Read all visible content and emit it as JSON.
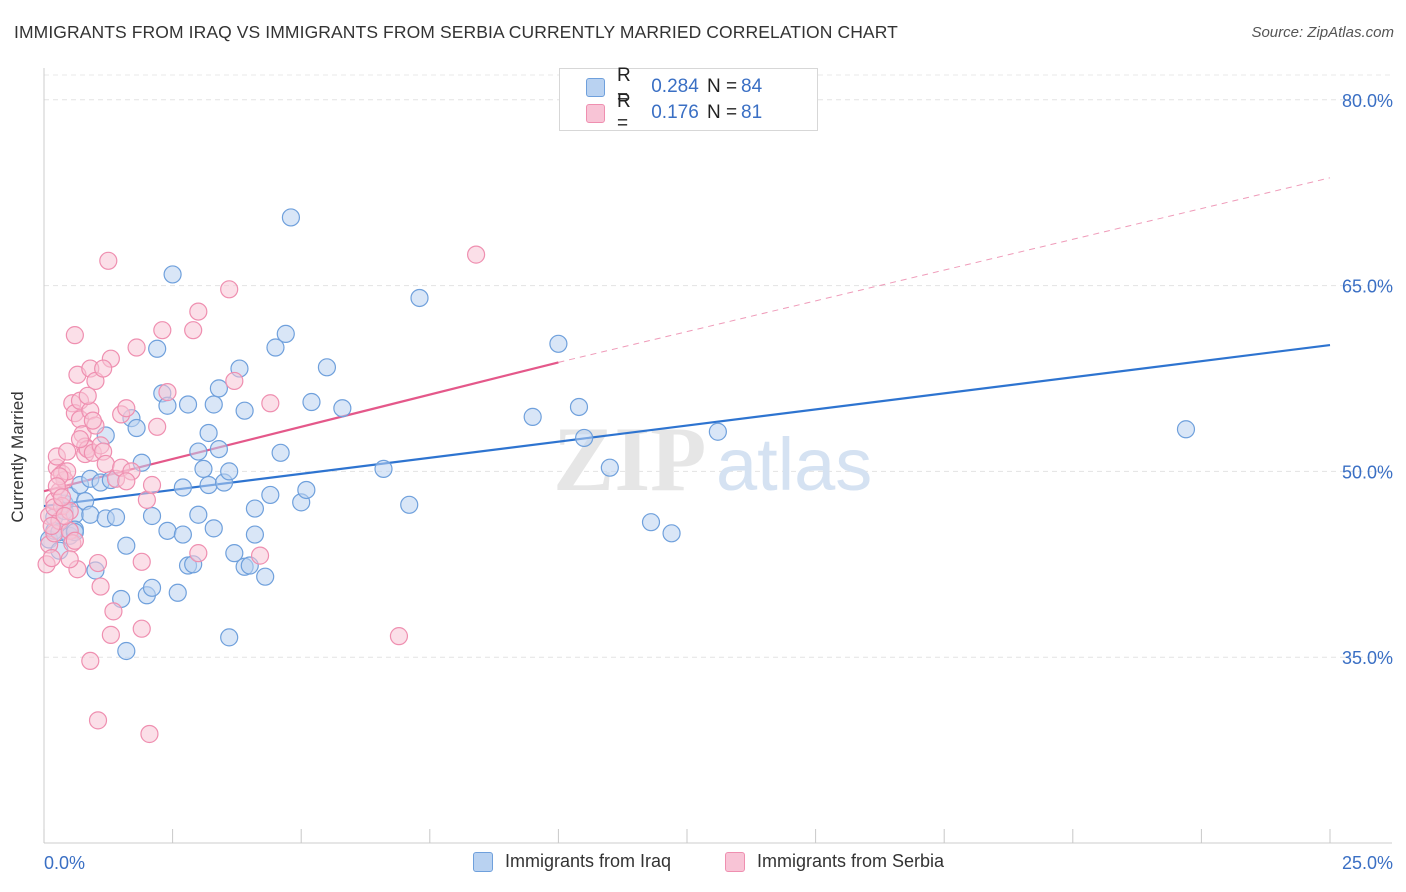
{
  "chart_data": {
    "type": "scatter",
    "title": "IMMIGRANTS FROM IRAQ VS IMMIGRANTS FROM SERBIA CURRENTLY MARRIED CORRELATION CHART",
    "source": "Source: ZipAtlas.com",
    "ylabel": "Currently Married",
    "xlabel": "",
    "xlim": [
      0,
      25
    ],
    "ylim": [
      20,
      82
    ],
    "x_tick_labels": [
      "0.0%",
      "25.0%"
    ],
    "y_ticks": [
      80,
      65,
      50,
      35
    ],
    "y_tick_labels": [
      "80.0%",
      "65.0%",
      "50.0%",
      "35.0%"
    ],
    "grid": true,
    "watermark": "ZIPatlas",
    "legend": {
      "placement": "top-center",
      "entries": [
        {
          "r_label": "R =",
          "r_value": "0.284",
          "n_label": "N =",
          "n_value": "84"
        },
        {
          "r_label": "R =",
          "r_value": "0.176",
          "n_label": "N =",
          "n_value": "81"
        }
      ]
    },
    "series": [
      {
        "name": "Immigrants from Iraq",
        "color": "#6fa0dc",
        "fill": "#b9d2f1",
        "line_color": "#2e74d0",
        "trend": {
          "x0": 0,
          "y0": 47.2,
          "x1": 25,
          "y1": 60.2
        },
        "points": [
          [
            0.1,
            44.5
          ],
          [
            0.2,
            45.2
          ],
          [
            0.2,
            46.3
          ],
          [
            0.3,
            43.6
          ],
          [
            0.3,
            45.1
          ],
          [
            0.4,
            47.4
          ],
          [
            0.4,
            46.8
          ],
          [
            0.5,
            44.8
          ],
          [
            0.5,
            48.0
          ],
          [
            0.6,
            46.5
          ],
          [
            0.6,
            45.3
          ],
          [
            0.7,
            48.9
          ],
          [
            0.8,
            47.6
          ],
          [
            0.9,
            49.4
          ],
          [
            0.9,
            46.5
          ],
          [
            1.0,
            42.0
          ],
          [
            1.1,
            49.1
          ],
          [
            1.2,
            52.9
          ],
          [
            1.2,
            46.2
          ],
          [
            1.3,
            49.3
          ],
          [
            1.4,
            46.3
          ],
          [
            1.5,
            39.7
          ],
          [
            1.6,
            44.0
          ],
          [
            1.6,
            35.5
          ],
          [
            1.7,
            54.3
          ],
          [
            1.8,
            53.5
          ],
          [
            1.9,
            50.7
          ],
          [
            2.0,
            40.0
          ],
          [
            2.1,
            46.4
          ],
          [
            2.1,
            40.6
          ],
          [
            2.2,
            59.9
          ],
          [
            2.3,
            56.3
          ],
          [
            2.4,
            55.3
          ],
          [
            2.4,
            45.2
          ],
          [
            2.5,
            65.9
          ],
          [
            2.6,
            40.2
          ],
          [
            2.7,
            44.9
          ],
          [
            2.7,
            48.7
          ],
          [
            2.8,
            42.4
          ],
          [
            2.8,
            55.4
          ],
          [
            2.9,
            42.5
          ],
          [
            3.0,
            46.5
          ],
          [
            3.0,
            51.6
          ],
          [
            3.1,
            50.2
          ],
          [
            3.2,
            48.9
          ],
          [
            3.2,
            53.1
          ],
          [
            3.3,
            55.4
          ],
          [
            3.3,
            45.4
          ],
          [
            3.4,
            51.8
          ],
          [
            3.4,
            56.7
          ],
          [
            3.5,
            49.1
          ],
          [
            3.6,
            36.6
          ],
          [
            3.6,
            50.0
          ],
          [
            3.7,
            43.4
          ],
          [
            3.8,
            58.3
          ],
          [
            3.9,
            54.9
          ],
          [
            3.9,
            42.3
          ],
          [
            4.0,
            42.4
          ],
          [
            4.1,
            44.9
          ],
          [
            4.1,
            47.0
          ],
          [
            4.3,
            41.5
          ],
          [
            4.4,
            48.1
          ],
          [
            4.5,
            60.0
          ],
          [
            4.6,
            51.5
          ],
          [
            4.7,
            61.1
          ],
          [
            4.8,
            70.5
          ],
          [
            5.0,
            47.5
          ],
          [
            5.1,
            48.5
          ],
          [
            5.2,
            55.6
          ],
          [
            5.5,
            58.4
          ],
          [
            5.8,
            55.1
          ],
          [
            6.6,
            50.2
          ],
          [
            7.1,
            47.3
          ],
          [
            7.3,
            64.0
          ],
          [
            9.5,
            54.4
          ],
          [
            10.0,
            60.3
          ],
          [
            10.4,
            55.2
          ],
          [
            10.5,
            52.7
          ],
          [
            11.0,
            50.3
          ],
          [
            11.8,
            45.9
          ],
          [
            12.2,
            45.0
          ],
          [
            13.1,
            53.2
          ],
          [
            22.2,
            53.4
          ],
          [
            0.6,
            45.1
          ]
        ]
      },
      {
        "name": "Immigrants from Serbia",
        "color": "#ef8fb0",
        "fill": "#f8c4d6",
        "line_color": "#e4588a",
        "trend": {
          "x0": 0,
          "y0": 48.4,
          "x1": 10.0,
          "y1": 58.8
        },
        "trend_ext": {
          "x0": 10.0,
          "y0": 58.8,
          "x1": 25,
          "y1": 73.7
        },
        "points": [
          [
            0.05,
            42.5
          ],
          [
            0.1,
            44.1
          ],
          [
            0.1,
            46.4
          ],
          [
            0.15,
            43.0
          ],
          [
            0.2,
            47.6
          ],
          [
            0.2,
            45.0
          ],
          [
            0.25,
            50.3
          ],
          [
            0.25,
            51.2
          ],
          [
            0.3,
            48.4
          ],
          [
            0.3,
            46.0
          ],
          [
            0.35,
            49.8
          ],
          [
            0.35,
            47.2
          ],
          [
            0.4,
            49.3
          ],
          [
            0.45,
            50.0
          ],
          [
            0.5,
            46.8
          ],
          [
            0.5,
            45.2
          ],
          [
            0.55,
            44.2
          ],
          [
            0.55,
            55.5
          ],
          [
            0.6,
            61.0
          ],
          [
            0.6,
            54.7
          ],
          [
            0.65,
            42.1
          ],
          [
            0.65,
            57.8
          ],
          [
            0.7,
            55.7
          ],
          [
            0.7,
            54.2
          ],
          [
            0.75,
            53.0
          ],
          [
            0.8,
            52.0
          ],
          [
            0.8,
            51.4
          ],
          [
            0.85,
            51.8
          ],
          [
            0.9,
            58.3
          ],
          [
            0.9,
            54.9
          ],
          [
            0.95,
            51.5
          ],
          [
            1.0,
            57.3
          ],
          [
            1.0,
            53.7
          ],
          [
            1.05,
            42.6
          ],
          [
            1.1,
            40.7
          ],
          [
            1.1,
            52.1
          ],
          [
            1.15,
            51.6
          ],
          [
            1.2,
            50.6
          ],
          [
            1.25,
            67.0
          ],
          [
            1.3,
            59.1
          ],
          [
            1.3,
            36.8
          ],
          [
            1.35,
            38.7
          ],
          [
            1.4,
            49.4
          ],
          [
            1.5,
            54.6
          ],
          [
            1.5,
            50.3
          ],
          [
            1.6,
            55.1
          ],
          [
            1.7,
            50.0
          ],
          [
            1.8,
            60.0
          ],
          [
            1.9,
            37.3
          ],
          [
            1.9,
            42.7
          ],
          [
            2.0,
            47.7
          ],
          [
            2.1,
            48.9
          ],
          [
            2.2,
            53.6
          ],
          [
            2.3,
            61.4
          ],
          [
            2.4,
            56.4
          ],
          [
            2.9,
            61.4
          ],
          [
            3.0,
            62.9
          ],
          [
            3.0,
            43.4
          ],
          [
            3.6,
            64.7
          ],
          [
            3.7,
            57.3
          ],
          [
            4.2,
            43.2
          ],
          [
            4.4,
            55.5
          ],
          [
            6.9,
            36.7
          ],
          [
            8.4,
            67.5
          ],
          [
            1.05,
            29.9
          ],
          [
            2.05,
            28.8
          ],
          [
            0.9,
            34.7
          ],
          [
            0.5,
            42.9
          ],
          [
            0.6,
            44.4
          ],
          [
            0.2,
            47.1
          ],
          [
            0.3,
            49.6
          ],
          [
            0.4,
            46.4
          ],
          [
            0.15,
            45.6
          ],
          [
            0.7,
            52.6
          ],
          [
            1.15,
            58.3
          ],
          [
            0.85,
            56.1
          ],
          [
            1.6,
            49.2
          ],
          [
            0.95,
            54.1
          ],
          [
            0.45,
            51.6
          ],
          [
            0.25,
            48.8
          ],
          [
            0.35,
            47.9
          ]
        ]
      }
    ]
  }
}
